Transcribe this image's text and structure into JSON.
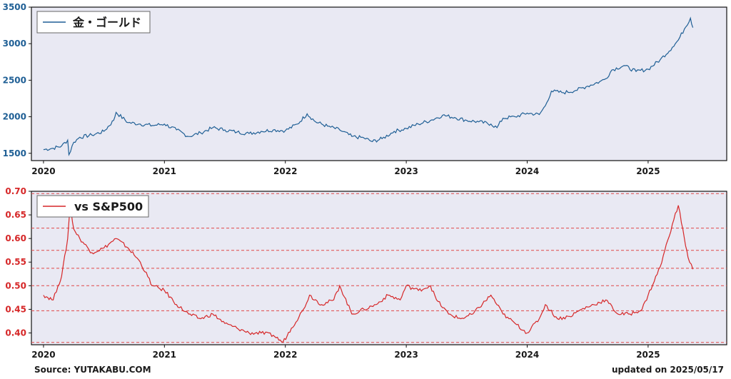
{
  "chart_data": [
    {
      "type": "line",
      "series": [
        {
          "name": "金・ゴールド",
          "color": "#1f5f95"
        }
      ],
      "x_ticks": [
        "2020",
        "2021",
        "2022",
        "2023",
        "2024",
        "2025"
      ],
      "y_ticks": [
        "1500",
        "2000",
        "2500",
        "3000",
        "3500"
      ],
      "ylim": [
        1400,
        3500
      ],
      "xlim": [
        2019.9,
        2025.65
      ],
      "grid": false,
      "legend_position": "top-left",
      "x": [
        2020.0,
        2020.08,
        2020.15,
        2020.2,
        2020.21,
        2020.25,
        2020.3,
        2020.4,
        2020.5,
        2020.58,
        2020.6,
        2020.7,
        2020.8,
        2020.9,
        2021.0,
        2021.1,
        2021.2,
        2021.3,
        2021.4,
        2021.5,
        2021.6,
        2021.7,
        2021.8,
        2021.9,
        2022.0,
        2022.1,
        2022.18,
        2022.25,
        2022.35,
        2022.45,
        2022.55,
        2022.65,
        2022.72,
        2022.8,
        2022.9,
        2023.0,
        2023.1,
        2023.2,
        2023.3,
        2023.4,
        2023.5,
        2023.6,
        2023.7,
        2023.75,
        2023.8,
        2023.9,
        2024.0,
        2024.1,
        2024.15,
        2024.2,
        2024.3,
        2024.4,
        2024.5,
        2024.6,
        2024.65,
        2024.7,
        2024.8,
        2024.9,
        2025.0,
        2025.1,
        2025.2,
        2025.25,
        2025.3,
        2025.35,
        2025.37
      ],
      "values": [
        1550,
        1570,
        1600,
        1680,
        1480,
        1650,
        1720,
        1750,
        1800,
        1950,
        2060,
        1920,
        1900,
        1880,
        1900,
        1820,
        1730,
        1780,
        1850,
        1820,
        1790,
        1770,
        1800,
        1820,
        1810,
        1900,
        2040,
        1930,
        1870,
        1820,
        1730,
        1710,
        1660,
        1700,
        1800,
        1840,
        1900,
        1950,
        2020,
        1990,
        1950,
        1930,
        1900,
        1850,
        1980,
        2000,
        2050,
        2030,
        2150,
        2350,
        2330,
        2360,
        2420,
        2480,
        2520,
        2640,
        2700,
        2620,
        2650,
        2780,
        2950,
        3050,
        3200,
        3350,
        3220
      ]
    },
    {
      "type": "line",
      "series": [
        {
          "name": "vs S&P500",
          "color": "#d62728"
        }
      ],
      "x_ticks": [
        "2020",
        "2021",
        "2022",
        "2023",
        "2024",
        "2025"
      ],
      "y_ticks": [
        "0.40",
        "0.45",
        "0.50",
        "0.55",
        "0.60",
        "0.65",
        "0.70"
      ],
      "ylim": [
        0.375,
        0.7
      ],
      "xlim": [
        2019.9,
        2025.65
      ],
      "grid": false,
      "reference_lines": [
        0.38,
        0.447,
        0.5,
        0.537,
        0.575,
        0.622,
        0.695
      ],
      "legend_position": "top-left",
      "x": [
        2020.0,
        2020.08,
        2020.12,
        2020.15,
        2020.2,
        2020.22,
        2020.25,
        2020.3,
        2020.4,
        2020.5,
        2020.6,
        2020.7,
        2020.8,
        2020.9,
        2021.0,
        2021.1,
        2021.2,
        2021.3,
        2021.4,
        2021.5,
        2021.6,
        2021.7,
        2021.8,
        2021.9,
        2021.98,
        2022.05,
        2022.15,
        2022.2,
        2022.3,
        2022.4,
        2022.45,
        2022.55,
        2022.65,
        2022.75,
        2022.85,
        2022.95,
        2023.0,
        2023.1,
        2023.2,
        2023.25,
        2023.35,
        2023.45,
        2023.55,
        2023.7,
        2023.8,
        2023.85,
        2023.9,
        2024.0,
        2024.1,
        2024.15,
        2024.25,
        2024.35,
        2024.45,
        2024.55,
        2024.65,
        2024.75,
        2024.85,
        2024.95,
        2025.0,
        2025.1,
        2025.2,
        2025.25,
        2025.3,
        2025.33,
        2025.37
      ],
      "values": [
        0.48,
        0.47,
        0.5,
        0.52,
        0.6,
        0.67,
        0.62,
        0.6,
        0.57,
        0.58,
        0.6,
        0.58,
        0.55,
        0.5,
        0.49,
        0.46,
        0.44,
        0.43,
        0.44,
        0.42,
        0.41,
        0.4,
        0.4,
        0.395,
        0.38,
        0.41,
        0.45,
        0.48,
        0.46,
        0.47,
        0.5,
        0.44,
        0.45,
        0.46,
        0.48,
        0.47,
        0.5,
        0.49,
        0.5,
        0.47,
        0.44,
        0.43,
        0.44,
        0.48,
        0.44,
        0.43,
        0.42,
        0.4,
        0.43,
        0.46,
        0.43,
        0.435,
        0.45,
        0.46,
        0.47,
        0.44,
        0.44,
        0.45,
        0.48,
        0.54,
        0.63,
        0.67,
        0.6,
        0.56,
        0.535
      ]
    }
  ],
  "footer": {
    "source": "Source: YUTAKABU.COM",
    "updated": "updated on 2025/05/17"
  }
}
